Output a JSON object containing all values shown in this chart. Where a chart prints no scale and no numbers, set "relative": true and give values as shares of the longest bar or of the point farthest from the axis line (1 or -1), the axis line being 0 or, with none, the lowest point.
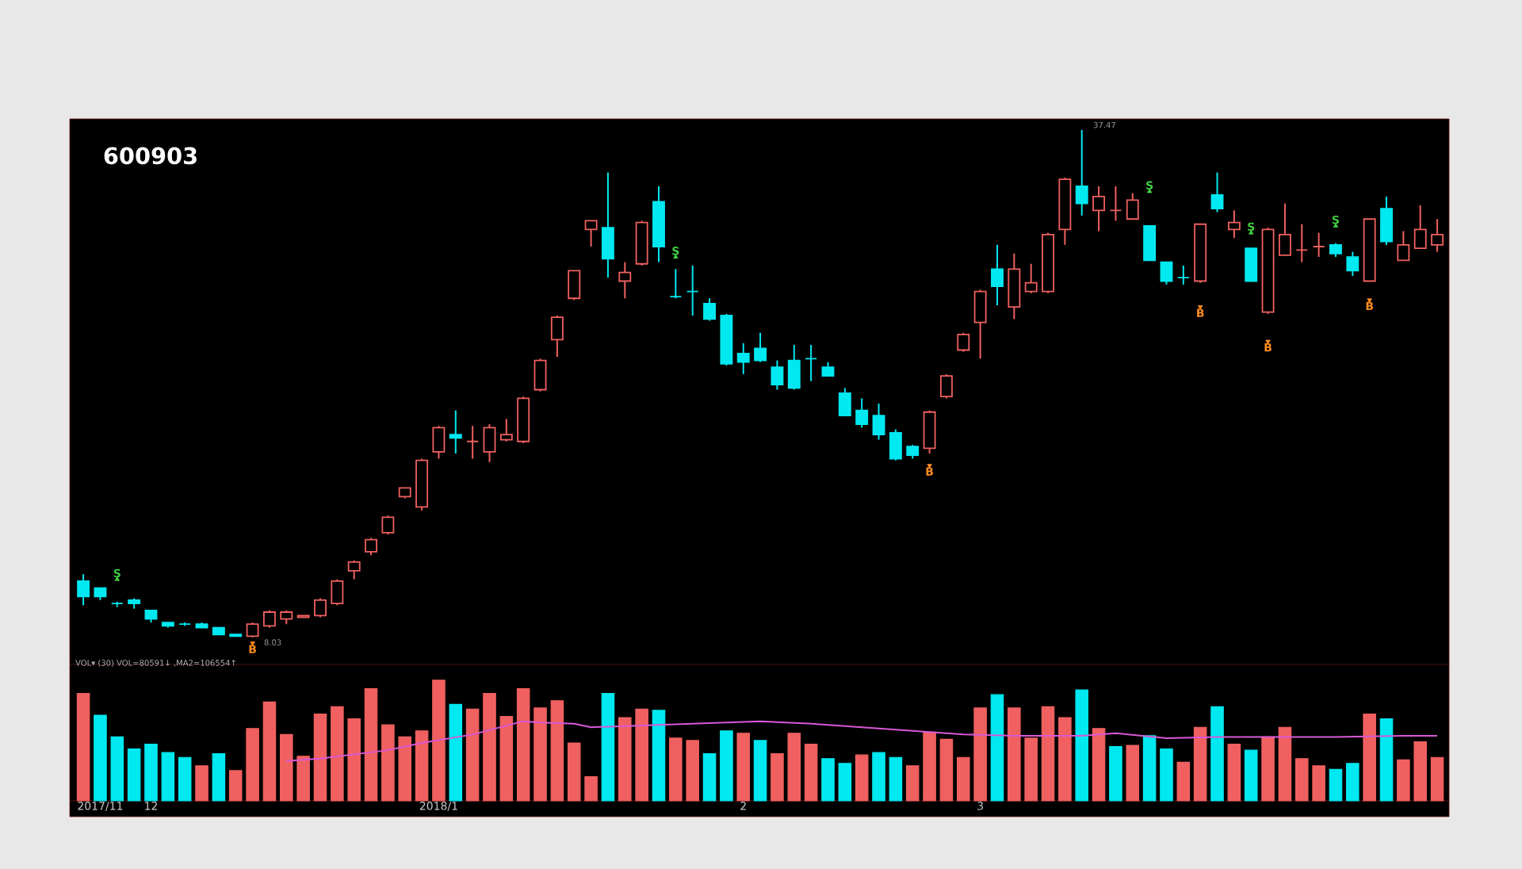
{
  "chart_data": [
    {
      "type": "candlestick",
      "title": "600903",
      "tick_labels": false,
      "categories": [
        null,
        "2017/11",
        null,
        null,
        "12",
        null,
        null,
        null,
        null,
        null,
        null,
        null,
        null,
        null,
        null,
        null,
        null,
        null,
        null,
        null,
        null,
        "2018/1",
        null,
        null,
        null,
        null,
        null,
        null,
        null,
        null,
        null,
        null,
        null,
        null,
        null,
        null,
        null,
        null,
        null,
        "2",
        null,
        null,
        null,
        null,
        null,
        null,
        null,
        null,
        null,
        null,
        null,
        null,
        null,
        "3",
        null,
        null,
        null,
        null,
        null,
        null,
        null,
        null,
        null,
        null,
        null,
        null,
        null,
        null,
        null,
        null,
        null,
        null,
        null,
        null,
        null,
        null,
        null,
        null,
        null,
        null,
        null
      ],
      "ohlc": [
        [
          11.3,
          11.7,
          9.9,
          10.4
        ],
        [
          10.9,
          10.9,
          10.2,
          10.4
        ],
        [
          10.0,
          10.1,
          9.8,
          10.0
        ],
        [
          10.2,
          10.3,
          9.7,
          10.0
        ],
        [
          9.6,
          9.6,
          8.9,
          9.1
        ],
        [
          8.9,
          8.9,
          8.6,
          8.7
        ],
        [
          8.8,
          8.9,
          8.7,
          8.8
        ],
        [
          8.8,
          8.9,
          8.6,
          8.6
        ],
        [
          8.6,
          8.6,
          8.2,
          8.2
        ],
        [
          8.2,
          8.2,
          8.1,
          8.1
        ],
        [
          8.1,
          8.9,
          8.03,
          8.8
        ],
        [
          8.7,
          9.6,
          8.6,
          9.5
        ],
        [
          9.1,
          9.6,
          8.8,
          9.5
        ],
        [
          9.2,
          9.3,
          9.2,
          9.3
        ],
        [
          9.3,
          10.3,
          9.2,
          10.2
        ],
        [
          10.0,
          11.4,
          9.9,
          11.3
        ],
        [
          11.9,
          12.5,
          11.4,
          12.4
        ],
        [
          13.0,
          13.8,
          12.8,
          13.7
        ],
        [
          14.1,
          15.1,
          14.0,
          15.0
        ],
        [
          16.2,
          16.7,
          16.1,
          16.7
        ],
        [
          15.6,
          18.4,
          15.4,
          18.3
        ],
        [
          18.8,
          20.3,
          18.4,
          20.2
        ],
        [
          19.8,
          21.2,
          18.7,
          19.6
        ],
        [
          19.4,
          20.3,
          18.4,
          19.4
        ],
        [
          18.8,
          20.4,
          18.2,
          20.2
        ],
        [
          19.5,
          20.7,
          19.4,
          19.8
        ],
        [
          19.4,
          22.0,
          19.3,
          21.9
        ],
        [
          22.4,
          24.2,
          22.3,
          24.1
        ],
        [
          25.3,
          26.7,
          24.3,
          26.6
        ],
        [
          27.7,
          29.3,
          27.6,
          29.3
        ],
        [
          31.7,
          32.2,
          30.7,
          32.2
        ],
        [
          31.8,
          35.0,
          28.9,
          30.0
        ],
        [
          28.7,
          29.8,
          27.7,
          29.2
        ],
        [
          29.7,
          32.2,
          29.6,
          32.1
        ],
        [
          33.3,
          34.2,
          29.8,
          30.7
        ],
        [
          27.8,
          29.4,
          27.7,
          27.8
        ],
        [
          28.1,
          29.6,
          26.7,
          28.1
        ],
        [
          27.4,
          27.7,
          26.4,
          26.5
        ],
        [
          26.7,
          26.8,
          23.8,
          23.9
        ],
        [
          24.5,
          25.1,
          23.3,
          24.0
        ],
        [
          24.8,
          25.7,
          24.0,
          24.1
        ],
        [
          23.7,
          24.1,
          22.4,
          22.7
        ],
        [
          24.1,
          25.0,
          22.4,
          22.5
        ],
        [
          24.2,
          25.0,
          22.9,
          24.2
        ],
        [
          23.7,
          24.0,
          23.2,
          23.2
        ],
        [
          22.2,
          22.5,
          20.9,
          20.9
        ],
        [
          21.2,
          21.9,
          20.2,
          20.4
        ],
        [
          20.9,
          21.6,
          19.5,
          19.8
        ],
        [
          19.9,
          20.1,
          18.3,
          18.4
        ],
        [
          19.1,
          19.2,
          18.4,
          18.6
        ],
        [
          19.0,
          21.2,
          18.7,
          21.1
        ],
        [
          22.0,
          23.3,
          21.9,
          23.2
        ],
        [
          24.7,
          25.7,
          24.6,
          25.6
        ],
        [
          26.3,
          28.2,
          24.2,
          28.1
        ],
        [
          29.4,
          30.8,
          27.3,
          28.4
        ],
        [
          27.2,
          30.3,
          26.5,
          29.4
        ],
        [
          28.1,
          29.7,
          28.0,
          28.6
        ],
        [
          28.1,
          31.5,
          28.0,
          31.4
        ],
        [
          31.7,
          34.7,
          30.8,
          34.6
        ],
        [
          34.2,
          37.47,
          32.5,
          33.2
        ],
        [
          32.8,
          34.2,
          31.6,
          33.6
        ],
        [
          32.8,
          34.2,
          32.2,
          32.8
        ],
        [
          32.3,
          33.8,
          32.3,
          33.4
        ],
        [
          31.9,
          31.9,
          29.9,
          29.9
        ],
        [
          29.8,
          29.8,
          28.5,
          28.7
        ],
        [
          28.9,
          29.6,
          28.5,
          28.9
        ],
        [
          28.7,
          32.0,
          28.6,
          32.0
        ],
        [
          33.7,
          35.0,
          32.7,
          32.9
        ],
        [
          31.7,
          32.8,
          31.2,
          32.1
        ],
        [
          30.6,
          30.6,
          28.7,
          28.7
        ],
        [
          26.9,
          31.8,
          26.8,
          31.7
        ],
        [
          30.2,
          33.2,
          30.2,
          31.4
        ],
        [
          30.5,
          32.0,
          29.8,
          30.5
        ],
        [
          30.7,
          31.5,
          30.1,
          30.7
        ],
        [
          30.8,
          30.9,
          30.1,
          30.3
        ],
        [
          30.1,
          30.4,
          29.0,
          29.3
        ],
        [
          28.7,
          32.3,
          28.7,
          32.3
        ],
        [
          32.9,
          33.6,
          30.8,
          31.0
        ],
        [
          29.9,
          31.6,
          29.9,
          30.8
        ],
        [
          30.6,
          33.1,
          30.6,
          31.7
        ],
        [
          30.8,
          32.3,
          30.4,
          31.4
        ]
      ],
      "colors": [
        "#00e8f0",
        "#00e8f0",
        "#00e8f0",
        "#00e8f0",
        "#00e8f0",
        "#00e8f0",
        "#00e8f0",
        "#00e8f0",
        "#00e8f0",
        "#00e8f0",
        "#f06060",
        "#f06060",
        "#f06060",
        "#f06060",
        "#f06060",
        "#f06060",
        "#f06060",
        "#f06060",
        "#f06060",
        "#f06060",
        "#f06060",
        "#f06060",
        "#00e8f0",
        "#f06060",
        "#f06060",
        "#f06060",
        "#f06060",
        "#f06060",
        "#f06060",
        "#f06060",
        "#f06060",
        "#00e8f0",
        "#f06060",
        "#f06060",
        "#00e8f0",
        "#00e8f0",
        "#00e8f0",
        "#00e8f0",
        "#00e8f0",
        "#00e8f0",
        "#00e8f0",
        "#00e8f0",
        "#00e8f0",
        "#00e8f0",
        "#00e8f0",
        "#00e8f0",
        "#00e8f0",
        "#00e8f0",
        "#00e8f0",
        "#00e8f0",
        "#f06060",
        "#f06060",
        "#f06060",
        "#f06060",
        "#00e8f0",
        "#f06060",
        "#f06060",
        "#f06060",
        "#f06060",
        "#00e8f0",
        "#f06060",
        "#f06060",
        "#f06060",
        "#00e8f0",
        "#00e8f0",
        "#00e8f0",
        "#f06060",
        "#00e8f0",
        "#f06060",
        "#00e8f0",
        "#f06060",
        "#f06060",
        "#f06060",
        "#f06060",
        "#00e8f0",
        "#00e8f0",
        "#f06060",
        "#00e8f0",
        "#f06060",
        "#f06060",
        "#f06060"
      ],
      "series": [
        {
          "name": "S",
          "type": "scatter",
          "color": "#40d040",
          "values": [
            null,
            null,
            11.4,
            null,
            null,
            null,
            null,
            null,
            null,
            null,
            null,
            null,
            null,
            null,
            null,
            null,
            null,
            null,
            null,
            null,
            null,
            null,
            null,
            null,
            null,
            null,
            null,
            null,
            null,
            null,
            null,
            null,
            null,
            null,
            null,
            30.1,
            null,
            null,
            null,
            null,
            null,
            null,
            null,
            null,
            null,
            null,
            null,
            null,
            null,
            null,
            null,
            null,
            null,
            null,
            null,
            null,
            null,
            null,
            null,
            null,
            null,
            null,
            null,
            33.9,
            null,
            null,
            null,
            null,
            null,
            31.5,
            null,
            null,
            null,
            null,
            31.9,
            null,
            null,
            null,
            null,
            null,
            null
          ]
        },
        {
          "name": "B",
          "type": "scatter",
          "color": "#ff8c20",
          "values": [
            null,
            null,
            null,
            null,
            null,
            null,
            null,
            null,
            null,
            null,
            7.7,
            null,
            null,
            null,
            null,
            null,
            null,
            null,
            null,
            null,
            null,
            null,
            null,
            null,
            null,
            null,
            null,
            null,
            null,
            null,
            null,
            null,
            null,
            null,
            null,
            null,
            null,
            null,
            null,
            null,
            null,
            null,
            null,
            null,
            null,
            null,
            null,
            null,
            null,
            null,
            18.0,
            null,
            null,
            null,
            null,
            null,
            null,
            null,
            null,
            null,
            null,
            null,
            null,
            null,
            null,
            null,
            27.2,
            null,
            null,
            null,
            25.2,
            null,
            null,
            null,
            null,
            null,
            27.6,
            null,
            null,
            null,
            null
          ]
        }
      ],
      "annotations": [
        "37.47",
        "8.03"
      ]
    },
    {
      "type": "bar",
      "relative": true,
      "title": "VOL▾ (30) VOL=80591↓ ,MA2=106554↑",
      "categories": [
        null,
        "2017/11",
        null,
        null,
        "12",
        null,
        null,
        null,
        null,
        null,
        null,
        null,
        null,
        null,
        null,
        null,
        null,
        null,
        null,
        null,
        null,
        "2018/1",
        null,
        null,
        null,
        null,
        null,
        null,
        null,
        null,
        null,
        null,
        null,
        null,
        null,
        null,
        null,
        null,
        null,
        "2",
        null,
        null,
        null,
        null,
        null,
        null,
        null,
        null,
        null,
        null,
        null,
        null,
        null,
        "3",
        null,
        null,
        null,
        null,
        null,
        null,
        null,
        null,
        null,
        null,
        null,
        null,
        null,
        null,
        null,
        null,
        null,
        null,
        null,
        null,
        null,
        null,
        null,
        null,
        null,
        null,
        null
      ],
      "values": [
        0.89,
        0.71,
        0.53,
        0.43,
        0.47,
        0.4,
        0.36,
        0.29,
        0.39,
        0.25,
        0.6,
        0.82,
        0.55,
        0.37,
        0.72,
        0.78,
        0.68,
        0.93,
        0.63,
        0.53,
        0.58,
        1,
        0.8,
        0.76,
        0.89,
        0.7,
        0.93,
        0.77,
        0.83,
        0.48,
        0.2,
        0.89,
        0.69,
        0.76,
        0.75,
        0.52,
        0.5,
        0.39,
        0.58,
        0.56,
        0.5,
        0.39,
        0.56,
        0.47,
        0.35,
        0.31,
        0.38,
        0.4,
        0.36,
        0.29,
        0.57,
        0.51,
        0.36,
        0.77,
        0.88,
        0.77,
        0.52,
        0.78,
        0.69,
        0.92,
        0.6,
        0.45,
        0.46,
        0.54,
        0.43,
        0.32,
        0.61,
        0.78,
        0.47,
        0.42,
        0.53,
        0.61,
        0.35,
        0.29,
        0.26,
        0.31,
        0.72,
        0.68,
        0.34,
        0.49,
        0.36
      ],
      "colors": [
        "#f06060",
        "#00e8f0",
        "#00e8f0",
        "#00e8f0",
        "#00e8f0",
        "#00e8f0",
        "#00e8f0",
        "#f06060",
        "#00e8f0",
        "#f06060",
        "#f06060",
        "#f06060",
        "#f06060",
        "#f06060",
        "#f06060",
        "#f06060",
        "#f06060",
        "#f06060",
        "#f06060",
        "#f06060",
        "#f06060",
        "#f06060",
        "#00e8f0",
        "#f06060",
        "#f06060",
        "#f06060",
        "#f06060",
        "#f06060",
        "#f06060",
        "#f06060",
        "#f06060",
        "#00e8f0",
        "#f06060",
        "#f06060",
        "#00e8f0",
        "#f06060",
        "#f06060",
        "#00e8f0",
        "#00e8f0",
        "#f06060",
        "#00e8f0",
        "#f06060",
        "#f06060",
        "#f06060",
        "#00e8f0",
        "#00e8f0",
        "#f06060",
        "#00e8f0",
        "#00e8f0",
        "#f06060",
        "#f06060",
        "#f06060",
        "#f06060",
        "#f06060",
        "#00e8f0",
        "#f06060",
        "#f06060",
        "#f06060",
        "#f06060",
        "#00e8f0",
        "#f06060",
        "#00e8f0",
        "#f06060",
        "#00e8f0",
        "#00e8f0",
        "#f06060",
        "#f06060",
        "#00e8f0",
        "#f06060",
        "#00e8f0",
        "#f06060",
        "#f06060",
        "#f06060",
        "#f06060",
        "#00e8f0",
        "#00e8f0",
        "#f06060",
        "#00e8f0",
        "#f06060",
        "#f06060",
        "#f06060"
      ],
      "series": [
        {
          "type": "line",
          "color": "#d858d8",
          "values": [
            null,
            null,
            null,
            null,
            null,
            null,
            null,
            null,
            null,
            null,
            null,
            null,
            0.33,
            null,
            0.35,
            null,
            null,
            null,
            0.42,
            null,
            0.48,
            null,
            null,
            0.55,
            null,
            null,
            0.66,
            0.65,
            null,
            0.64,
            0.61,
            null,
            0.62,
            null,
            0.63,
            null,
            0.64,
            null,
            0.65,
            null,
            0.66,
            null,
            null,
            0.64,
            null,
            null,
            0.61,
            null,
            null,
            null,
            0.57,
            null,
            0.55,
            null,
            null,
            0.54,
            null,
            null,
            null,
            0.54,
            null,
            0.56,
            null,
            null,
            0.52,
            null,
            null,
            0.53,
            null,
            null,
            0.53,
            null,
            null,
            null,
            0.53,
            null,
            null,
            null,
            0.54,
            null,
            0.54
          ]
        }
      ]
    }
  ]
}
